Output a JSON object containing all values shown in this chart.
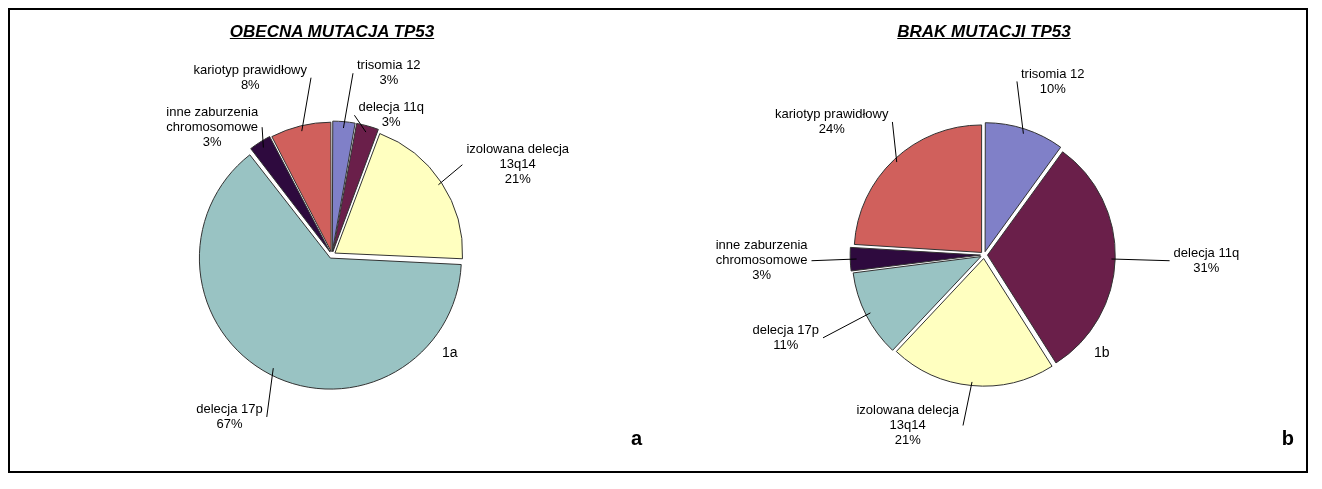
{
  "chart_data": [
    {
      "type": "pie",
      "title": "OBECNA MUTACJA TP53",
      "categories": [
        "trisomia 12",
        "delecja 11q",
        "izolowana delecja 13q14",
        "delecja 17p",
        "inne zaburzenia chromosomowe",
        "kariotyp prawidłowy"
      ],
      "values": [
        3,
        3,
        21,
        67,
        3,
        8
      ],
      "value_labels": [
        "3%",
        "3%",
        "21%",
        "67%",
        "3%",
        "8%"
      ],
      "colors": [
        "#8080c8",
        "#6a1f4a",
        "#ffffc0",
        "#99c3c3",
        "#2e0a3e",
        "#d0605c"
      ],
      "annotations": [
        "1a",
        "a"
      ]
    },
    {
      "type": "pie",
      "title": "BRAK MUTACJI TP53",
      "categories": [
        "trisomia 12",
        "delecja 11q",
        "izolowana delecja 13q14",
        "delecja 17p",
        "inne zaburzenia chromosomowe",
        "kariotyp prawidłowy"
      ],
      "values": [
        10,
        31,
        21,
        11,
        3,
        24
      ],
      "value_labels": [
        "10%",
        "31%",
        "21%",
        "11%",
        "3%",
        "24%"
      ],
      "colors": [
        "#8080c8",
        "#6a1f4a",
        "#ffffc0",
        "#99c3c3",
        "#2e0a3e",
        "#d0605c"
      ],
      "annotations": [
        "1b",
        "b"
      ]
    }
  ]
}
